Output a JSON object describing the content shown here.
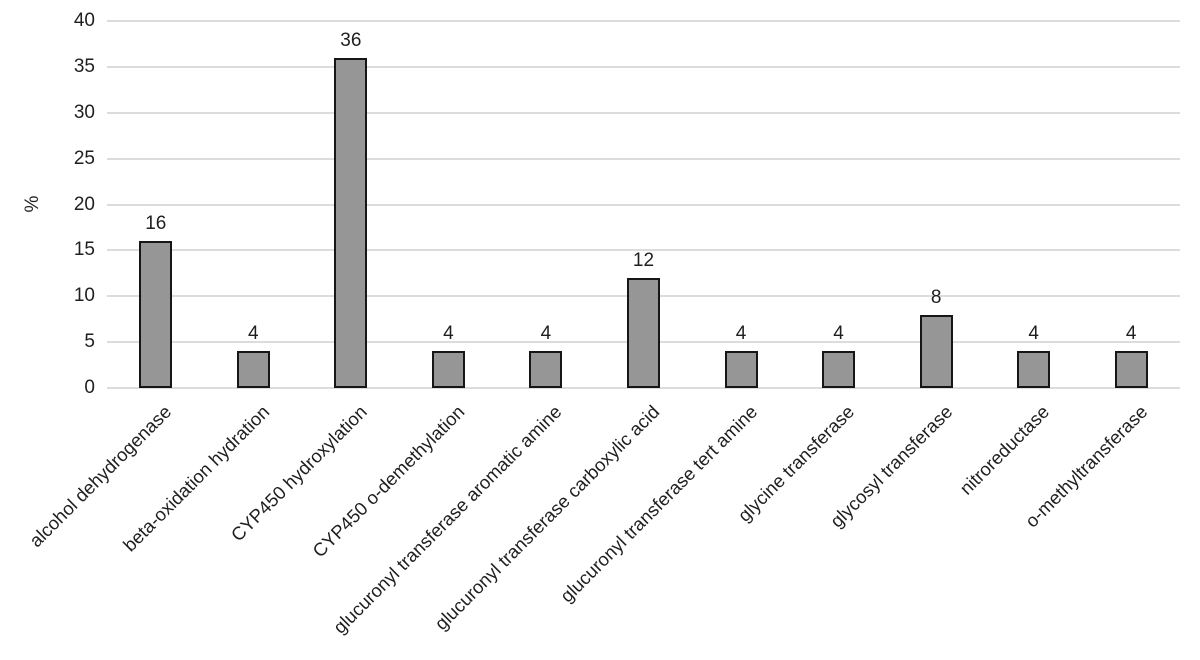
{
  "chart_data": {
    "type": "bar",
    "title": "",
    "xlabel": "",
    "ylabel": "%",
    "categories": [
      "alcohol dehydrogenase",
      "beta-oxidation hydration",
      "CYP450 hydroxylation",
      "CYP450 o-demethylation",
      "glucuronyl transferase aromatic amine",
      "glucuronyl transferase carboxylic acid",
      "glucuronyl transferase tert amine",
      "glycine transferase",
      "glycosyl transferase",
      "nitroreductase",
      "o-methyltransferase"
    ],
    "values": [
      16,
      4,
      36,
      4,
      4,
      12,
      4,
      4,
      8,
      4,
      4
    ],
    "data_labels": [
      "16",
      "4",
      "36",
      "4",
      "4",
      "12",
      "4",
      "4",
      "8",
      "4",
      "4"
    ],
    "ylim": [
      0,
      40
    ],
    "yticks": [
      0,
      5,
      10,
      15,
      20,
      25,
      30,
      35,
      40
    ],
    "grid": true,
    "legend": "none",
    "category_label_rotation_deg": 45,
    "colors": {
      "bar_fill": "#969696",
      "bar_border": "#161616",
      "gridline": "#dcdcdc",
      "text": "#1f1f1f",
      "background": "#ffffff"
    }
  }
}
